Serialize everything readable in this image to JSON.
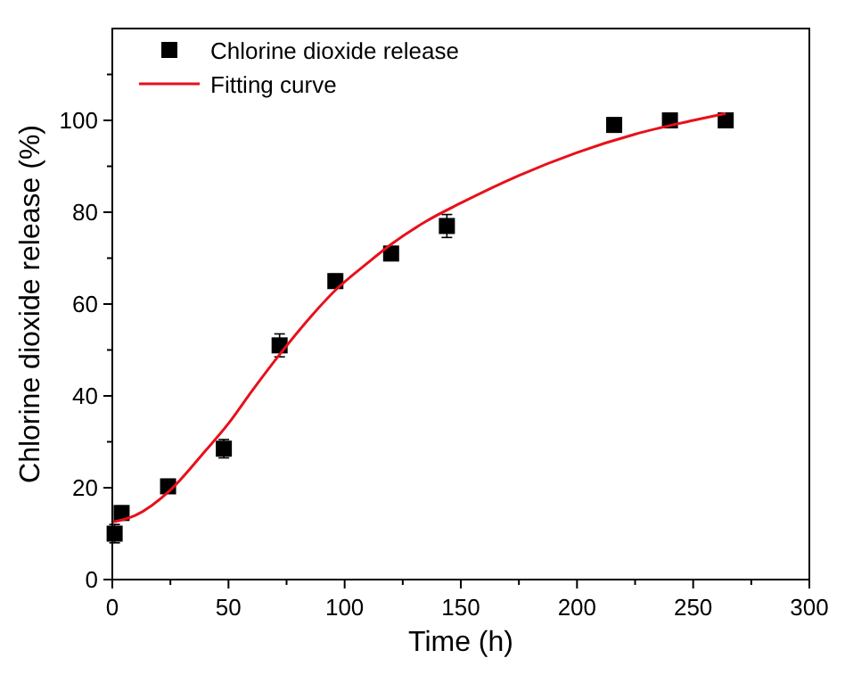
{
  "chart_data": {
    "type": "scatter",
    "xlabel": "Time (h)",
    "ylabel": "Chlorine dioxide release (%)",
    "xlim": [
      0,
      300
    ],
    "ylim": [
      0,
      120
    ],
    "xticks": [
      0,
      {
        "value": 25,
        "label": null
      },
      50,
      {
        "value": 75,
        "label": null
      },
      100,
      {
        "value": 125,
        "label": null
      },
      150,
      {
        "value": 175,
        "label": null
      },
      200,
      {
        "value": 225,
        "label": null
      },
      250,
      {
        "value": 275,
        "label": null
      },
      300
    ],
    "yticks": [
      0,
      {
        "value": 10,
        "label": null
      },
      20,
      {
        "value": 30,
        "label": null
      },
      40,
      {
        "value": 50,
        "label": null
      },
      60,
      {
        "value": 70,
        "label": null
      },
      80,
      {
        "value": 90,
        "label": null
      },
      100,
      {
        "value": 110,
        "label": null
      }
    ],
    "legend": "top left",
    "grid": false,
    "series": [
      {
        "name": "Chlorine dioxide release",
        "marker": "square",
        "color": "#000000",
        "x": [
          1,
          4,
          24,
          48,
          72,
          96,
          120,
          144,
          216,
          240,
          264
        ],
        "values": [
          10,
          14.5,
          20.3,
          28.5,
          51,
          65,
          71,
          77,
          99,
          100,
          100
        ],
        "errors": [
          2,
          1.5,
          1.5,
          2,
          2.5,
          1.5,
          1.5,
          2.5,
          1.5,
          1,
          1
        ]
      },
      {
        "name": "Fitting curve",
        "type": "line",
        "marker": "none",
        "line_style": "solid",
        "color": "#e8101a",
        "x": [
          0,
          10,
          25,
          40,
          50,
          60,
          72,
          85,
          96,
          110,
          120,
          135,
          150,
          175,
          200,
          225,
          250,
          264
        ],
        "values": [
          12.5,
          14,
          19.5,
          28,
          34,
          41,
          49,
          57,
          63,
          69,
          73,
          78,
          82,
          88,
          93,
          97,
          100,
          101.5
        ]
      }
    ]
  }
}
